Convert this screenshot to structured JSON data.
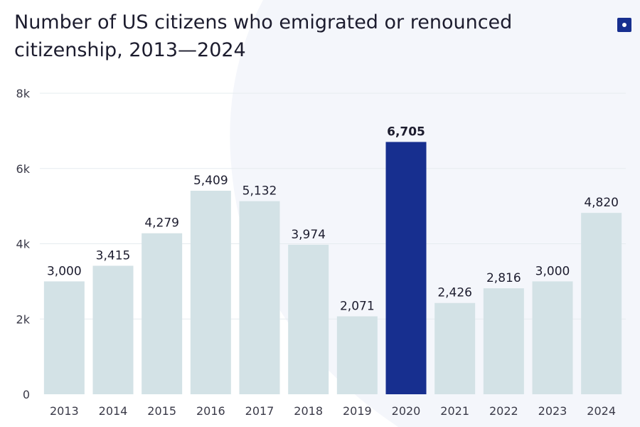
{
  "chart_data": {
    "type": "bar",
    "title_lines": [
      "Number of US citizens who emigrated or renounced",
      "citizenship, 2013—2024"
    ],
    "categories": [
      "2013",
      "2014",
      "2015",
      "2016",
      "2017",
      "2018",
      "2019",
      "2020",
      "2021",
      "2022",
      "2023",
      "2024"
    ],
    "values": [
      3000,
      3415,
      4279,
      5409,
      5132,
      3974,
      2071,
      6705,
      2426,
      2816,
      3000,
      4820
    ],
    "data_labels": [
      "3,000",
      "3,415",
      "4,279",
      "5,409",
      "5,132",
      "3,974",
      "2,071",
      "6,705",
      "2,426",
      "2,816",
      "3,000",
      "4,820"
    ],
    "highlight_index": 7,
    "y_ticks": [
      {
        "value": 0,
        "label": "0"
      },
      {
        "value": 2000,
        "label": "2k"
      },
      {
        "value": 4000,
        "label": "4k"
      },
      {
        "value": 6000,
        "label": "6k"
      },
      {
        "value": 8000,
        "label": "8k"
      }
    ],
    "ylim": [
      0,
      8000
    ],
    "xlabel": "",
    "ylabel": "",
    "grid": true,
    "legend": "none",
    "colors": {
      "bar": "#d3e2e6",
      "highlight": "#172f8f",
      "grid": "#e6ecef",
      "axis_text": "#3a3a48",
      "label_text": "#1c1c2e"
    }
  },
  "brand": {
    "icon": "brand-square-icon",
    "color": "#172f8f"
  }
}
